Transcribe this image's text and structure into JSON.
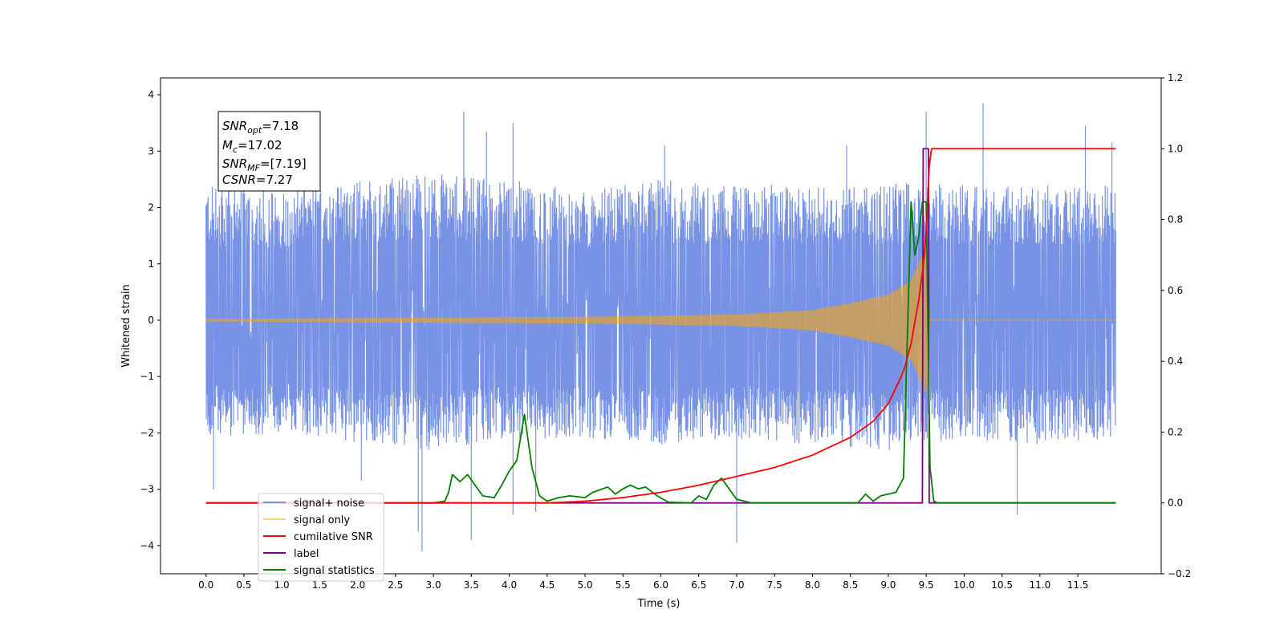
{
  "chart_data": {
    "type": "line",
    "xlabel": "Time (s)",
    "ylabel_left": "Whitened strain",
    "ylabel_right": "",
    "xlim": [
      -0.6,
      12.6
    ],
    "ylim_left": [
      -4.5,
      4.3
    ],
    "ylim_right": [
      -0.2,
      1.2
    ],
    "x_ticks": [
      "0.0",
      "0.5",
      "1.0",
      "1.5",
      "2.0",
      "2.5",
      "3.0",
      "3.5",
      "4.0",
      "4.5",
      "5.0",
      "5.5",
      "6.0",
      "6.5",
      "7.0",
      "7.5",
      "8.0",
      "8.5",
      "9.0",
      "9.5",
      "10.0",
      "10.5",
      "11.0",
      "11.5"
    ],
    "y_ticks_left": [
      "4",
      "3",
      "2",
      "1",
      "0",
      "−1",
      "−2",
      "−3",
      "−4"
    ],
    "y_ticks_right": [
      "1.2",
      "1.0",
      "0.8",
      "0.6",
      "0.4",
      "0.2",
      "0.0",
      "−0.2"
    ],
    "grid": false,
    "legend_position": "lower-left",
    "annotation": {
      "lines": [
        {
          "sym": "SNR",
          "sub": "opt",
          "val": "=7.18"
        },
        {
          "sym": "M",
          "sub": "c",
          "val": "=17.02"
        },
        {
          "sym": "SNR",
          "sub": "MF",
          "val": "=[7.19]"
        },
        {
          "sym": "CSNR",
          "sub": "",
          "val": "=7.27"
        }
      ]
    },
    "series": [
      {
        "name": "signal+ noise",
        "axis": "left",
        "color": "#7893e6",
        "kind": "noise_envelope",
        "x_range": [
          0.0,
          12.0
        ],
        "envelope_x": [
          0.0,
          1.0,
          2.0,
          3.0,
          4.0,
          5.0,
          6.0,
          7.0,
          8.0,
          9.0,
          9.5,
          10.0,
          11.0,
          12.0
        ],
        "envelope_upper": [
          2.4,
          2.3,
          2.5,
          2.6,
          2.5,
          2.3,
          2.5,
          2.4,
          2.4,
          2.4,
          2.5,
          2.4,
          2.4,
          2.4
        ],
        "envelope_lower": [
          -2.1,
          -2.0,
          -2.2,
          -2.3,
          -2.1,
          -2.1,
          -2.2,
          -2.1,
          -2.2,
          -2.3,
          -2.2,
          -2.1,
          -2.2,
          -2.1
        ],
        "spikes": [
          {
            "x": 0.1,
            "y": -3.0
          },
          {
            "x": 0.3,
            "y": 2.65
          },
          {
            "x": 1.3,
            "y": 2.5
          },
          {
            "x": 2.05,
            "y": -2.85
          },
          {
            "x": 2.8,
            "y": -3.75
          },
          {
            "x": 2.85,
            "y": -4.1
          },
          {
            "x": 3.4,
            "y": 3.7
          },
          {
            "x": 3.5,
            "y": -3.9
          },
          {
            "x": 3.7,
            "y": 3.35
          },
          {
            "x": 4.05,
            "y": 3.5
          },
          {
            "x": 4.05,
            "y": -3.45
          },
          {
            "x": 4.35,
            "y": -3.4
          },
          {
            "x": 6.05,
            "y": 3.1
          },
          {
            "x": 7.0,
            "y": -3.95
          },
          {
            "x": 8.45,
            "y": 3.1
          },
          {
            "x": 9.5,
            "y": 3.7
          },
          {
            "x": 10.25,
            "y": 3.85
          },
          {
            "x": 10.7,
            "y": -3.45
          },
          {
            "x": 11.6,
            "y": 3.45
          },
          {
            "x": 11.95,
            "y": 3.15
          }
        ]
      },
      {
        "name": "signal only",
        "axis": "left",
        "color": "#ffa500",
        "kind": "chirp",
        "x_range": [
          0.0,
          12.0
        ],
        "merger_time": 9.5,
        "amplitude_x": [
          0.0,
          5.0,
          7.0,
          8.0,
          8.5,
          9.0,
          9.3,
          9.5,
          9.55
        ],
        "amplitude_y": [
          0.02,
          0.06,
          0.1,
          0.18,
          0.3,
          0.45,
          0.7,
          1.3,
          0.0
        ]
      },
      {
        "name": "cumilative SNR",
        "axis": "right",
        "color": "#ff0000",
        "x": [
          4.5,
          5.0,
          5.5,
          6.0,
          6.5,
          7.0,
          7.5,
          8.0,
          8.5,
          8.8,
          9.0,
          9.2,
          9.3,
          9.4,
          9.45,
          9.5,
          9.55,
          12.0
        ],
        "y": [
          0.0,
          0.005,
          0.015,
          0.03,
          0.05,
          0.075,
          0.1,
          0.135,
          0.185,
          0.23,
          0.28,
          0.37,
          0.45,
          0.57,
          0.65,
          0.75,
          1.0,
          1.0
        ]
      },
      {
        "name": "label",
        "axis": "right",
        "color": "#800080",
        "x": [
          0.0,
          9.45,
          9.46,
          9.53,
          9.54,
          12.0
        ],
        "y": [
          0.0,
          0.0,
          1.0,
          1.0,
          0.0,
          0.0
        ]
      },
      {
        "name": "signal statistics",
        "axis": "right",
        "color": "#008000",
        "x": [
          0.0,
          3.0,
          3.15,
          3.2,
          3.25,
          3.35,
          3.45,
          3.55,
          3.65,
          3.8,
          3.9,
          4.0,
          4.1,
          4.2,
          4.3,
          4.4,
          4.5,
          4.65,
          4.8,
          5.0,
          5.1,
          5.3,
          5.4,
          5.5,
          5.6,
          5.7,
          5.8,
          5.95,
          6.1,
          6.4,
          6.5,
          6.6,
          6.7,
          6.8,
          6.9,
          7.0,
          7.2,
          8.6,
          8.7,
          8.8,
          8.9,
          9.1,
          9.2,
          9.3,
          9.35,
          9.4,
          9.45,
          9.5,
          9.55,
          9.6,
          9.65,
          12.0
        ],
        "y": [
          0.0,
          0.0,
          0.005,
          0.03,
          0.08,
          0.06,
          0.08,
          0.05,
          0.02,
          0.015,
          0.05,
          0.09,
          0.12,
          0.25,
          0.1,
          0.02,
          0.005,
          0.015,
          0.02,
          0.015,
          0.03,
          0.045,
          0.025,
          0.04,
          0.05,
          0.04,
          0.045,
          0.02,
          0.002,
          0.0,
          0.02,
          0.01,
          0.05,
          0.07,
          0.04,
          0.01,
          0.0,
          0.0,
          0.025,
          0.005,
          0.02,
          0.03,
          0.07,
          0.85,
          0.7,
          0.75,
          0.85,
          0.85,
          0.1,
          0.005,
          0.0,
          0.0
        ]
      }
    ]
  }
}
